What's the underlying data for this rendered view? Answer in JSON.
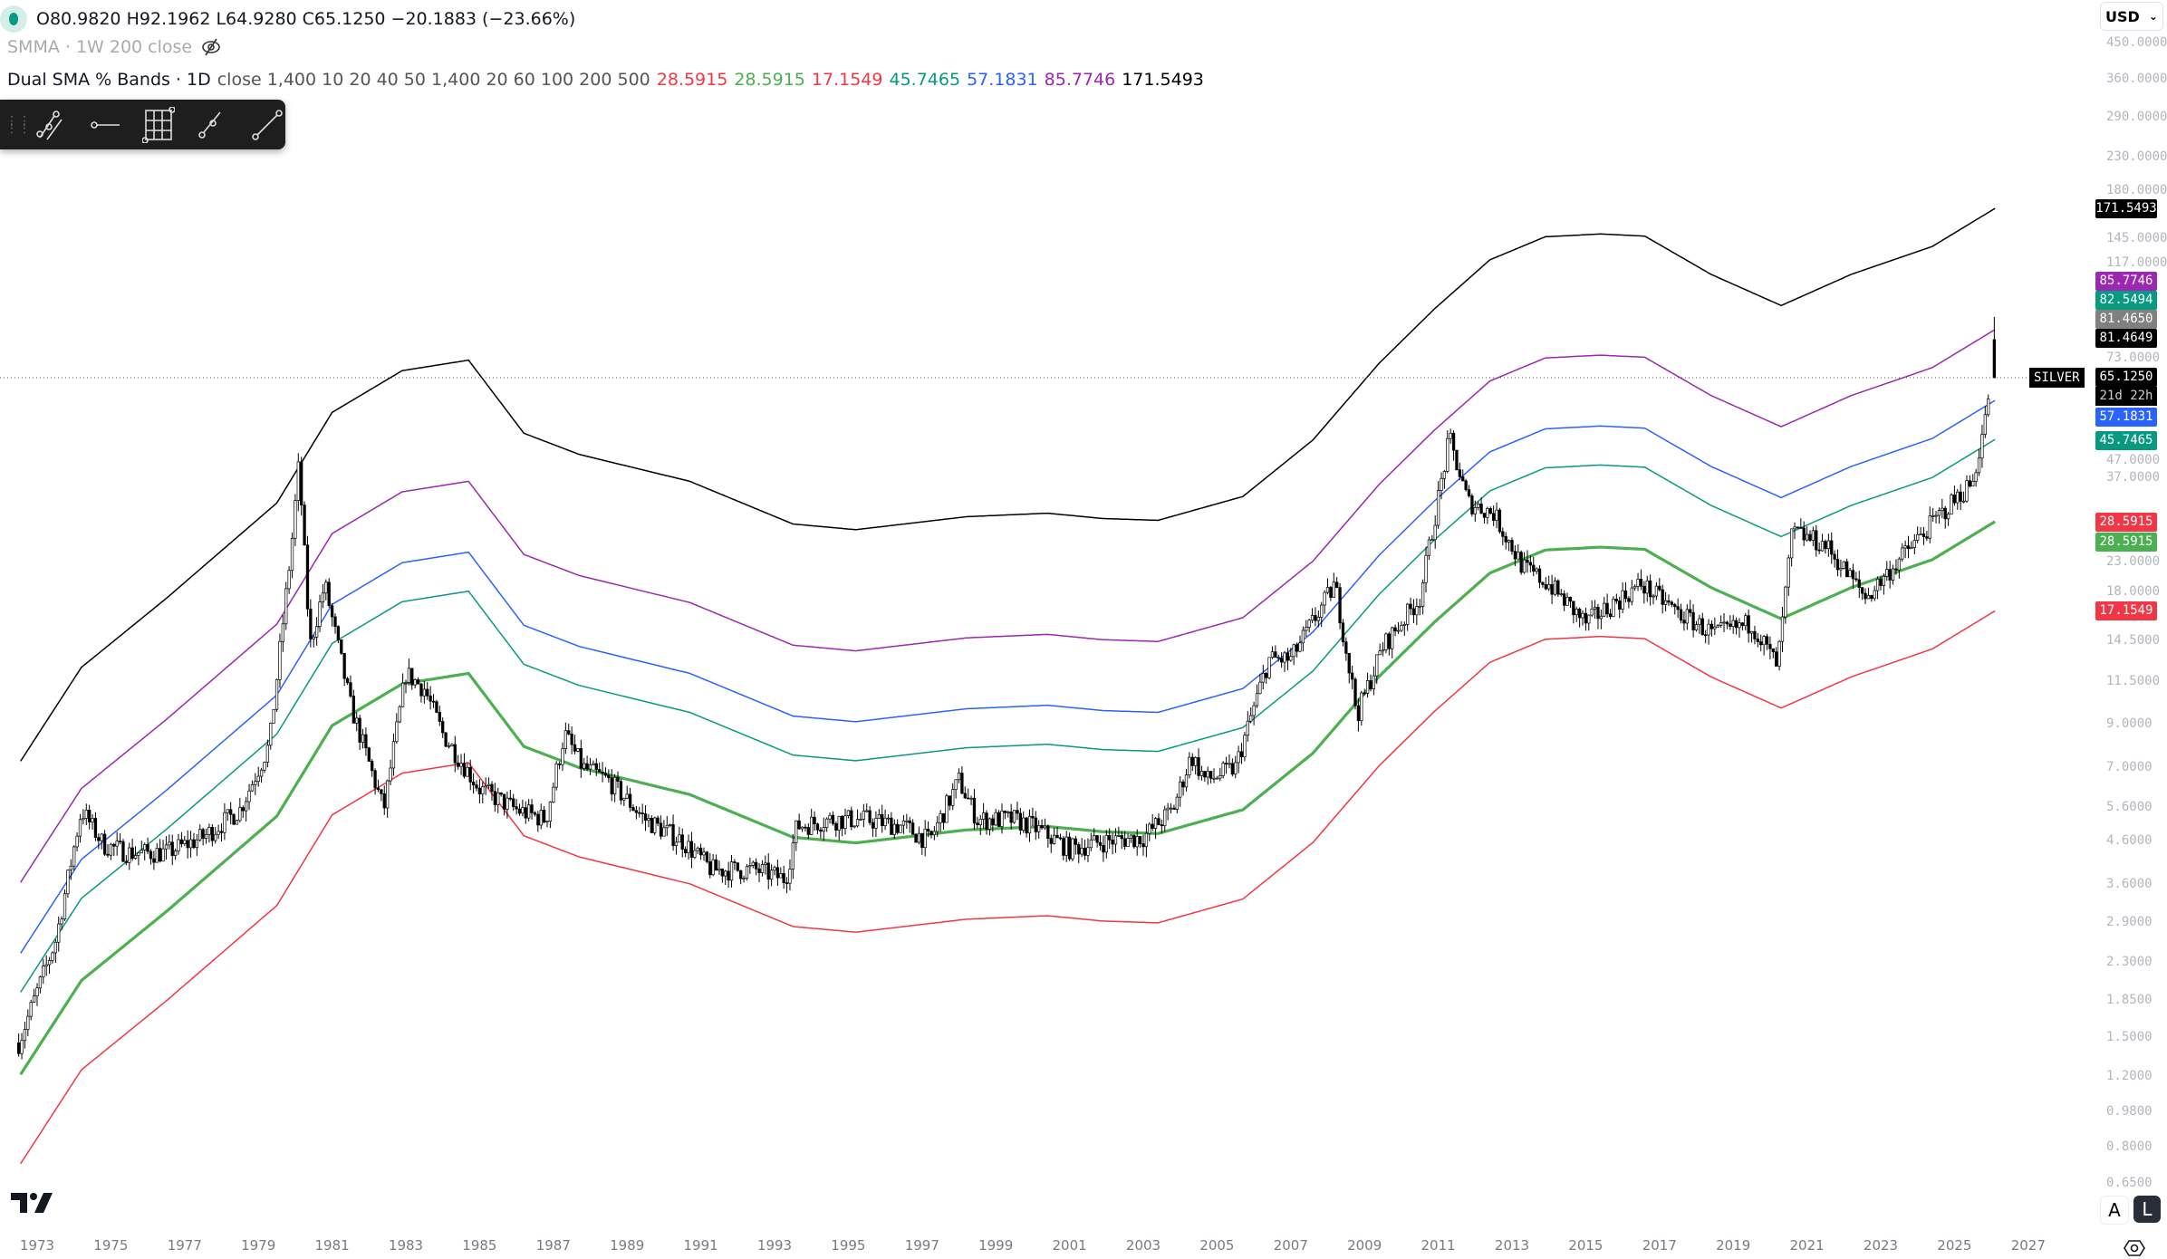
{
  "header": {
    "ohlc": "O80.9820 H92.1962 L64.9280 C65.1250 −20.1883 (−23.66%)",
    "indicator1": "SMMA · 1W 200 close",
    "indicator2_name": "Dual SMA % Bands · 1D",
    "indicator2_params": "close 1,400 10 20 40 50 1,400 20 60 100 200 500",
    "indicator2_values": [
      {
        "v": "28.5915",
        "color": "#f23645"
      },
      {
        "v": "28.5915",
        "color": "#4caf50"
      },
      {
        "v": "17.1549",
        "color": "#f23645"
      },
      {
        "v": "45.7465",
        "color": "#089981"
      },
      {
        "v": "57.1831",
        "color": "#2962ff"
      },
      {
        "v": "85.7746",
        "color": "#9c27b0"
      },
      {
        "v": "171.5493",
        "color": "#000000"
      }
    ]
  },
  "toolbar": {
    "icons": [
      "parallel-channel-icon",
      "horizontal-ray-icon",
      "fib-grid-icon",
      "trend-angle-icon",
      "trend-line-icon"
    ]
  },
  "currency": "USD",
  "symbol_label": "SILVER",
  "countdown": "21d 22h",
  "price_labels": [
    {
      "v": "171.5493",
      "color": "#000000"
    },
    {
      "v": "85.7746",
      "color": "#9c27b0"
    },
    {
      "v": "82.5494",
      "color": "#089981"
    },
    {
      "v": "81.4650",
      "color": "#808080"
    },
    {
      "v": "81.4649",
      "color": "#000000"
    },
    {
      "v": "65.1250",
      "color": "#000000"
    },
    {
      "v": "57.1831",
      "color": "#2962ff"
    },
    {
      "v": "45.7465",
      "color": "#089981"
    },
    {
      "v": "28.5915",
      "color": "#f23645"
    },
    {
      "v": "28.5915",
      "color": "#4caf50"
    },
    {
      "v": "17.1549",
      "color": "#f23645"
    }
  ],
  "scale_buttons": {
    "auto": "A",
    "log": "L"
  },
  "chart_data": {
    "type": "candlestick",
    "y_scale": "log",
    "ylim": [
      0.62,
      480
    ],
    "xlim": [
      1972.0,
      2027.3
    ],
    "y_ticks": [
      "450.0000",
      "360.0000",
      "290.0000",
      "230.0000",
      "180.0000",
      "145.0000",
      "117.0000",
      "73.0000",
      "47.0000",
      "37.0000",
      "23.0000",
      "18.0000",
      "14.5000",
      "11.5000",
      "9.0000",
      "7.0000",
      "5.6000",
      "4.6000",
      "3.6000",
      "2.9000",
      "2.3000",
      "1.8500",
      "1.5000",
      "1.2000",
      "0.9800",
      "0.8000",
      "0.6500"
    ],
    "x_ticks": [
      "1973",
      "1975",
      "1977",
      "1979",
      "1981",
      "1983",
      "1985",
      "1987",
      "1989",
      "1991",
      "1993",
      "1995",
      "1997",
      "1999",
      "2001",
      "2003",
      "2005",
      "2007",
      "2009",
      "2011",
      "2013",
      "2015",
      "2017",
      "2019",
      "2021",
      "2023",
      "2025",
      "2027"
    ],
    "price_path": [
      [
        1972.5,
        1.45
      ],
      [
        1973.5,
        2.6
      ],
      [
        1974.2,
        5.5
      ],
      [
        1974.8,
        4.5
      ],
      [
        1975.5,
        4.3
      ],
      [
        1976.5,
        4.3
      ],
      [
        1977.5,
        4.7
      ],
      [
        1978.5,
        5.5
      ],
      [
        1979.3,
        8
      ],
      [
        1979.9,
        25
      ],
      [
        1980.1,
        40
      ],
      [
        1980.4,
        14
      ],
      [
        1980.8,
        20
      ],
      [
        1981.5,
        10
      ],
      [
        1982.4,
        5.5
      ],
      [
        1983.0,
        12
      ],
      [
        1983.5,
        11
      ],
      [
        1984,
        8.5
      ],
      [
        1985,
        6.2
      ],
      [
        1986,
        5.5
      ],
      [
        1986.8,
        5.2
      ],
      [
        1987.3,
        8.5
      ],
      [
        1987.8,
        7
      ],
      [
        1988.5,
        6.5
      ],
      [
        1989.5,
        5.2
      ],
      [
        1990.5,
        4.6
      ],
      [
        1991.3,
        3.9
      ],
      [
        1992.5,
        3.9
      ],
      [
        1993.3,
        3.7
      ],
      [
        1993.6,
        5
      ],
      [
        1994.5,
        5.2
      ],
      [
        1995.5,
        5.2
      ],
      [
        1996.5,
        5
      ],
      [
        1997.2,
        4.6
      ],
      [
        1998,
        6.5
      ],
      [
        1998.5,
        5.2
      ],
      [
        1999.5,
        5.2
      ],
      [
        2000,
        5
      ],
      [
        2001,
        4.4
      ],
      [
        2002,
        4.6
      ],
      [
        2003,
        4.7
      ],
      [
        2003.8,
        5.5
      ],
      [
        2004.3,
        7.5
      ],
      [
        2004.7,
        6.5
      ],
      [
        2005.5,
        7
      ],
      [
        2006.4,
        13
      ],
      [
        2007,
        13
      ],
      [
        2008.2,
        20
      ],
      [
        2008.8,
        9.5
      ],
      [
        2009.5,
        14
      ],
      [
        2010.5,
        18.5
      ],
      [
        2011.3,
        46
      ],
      [
        2011.8,
        32
      ],
      [
        2012.5,
        30
      ],
      [
        2013.3,
        22
      ],
      [
        2014,
        20
      ],
      [
        2015,
        16
      ],
      [
        2016.5,
        20
      ],
      [
        2017.5,
        17
      ],
      [
        2018.5,
        15
      ],
      [
        2019.5,
        16
      ],
      [
        2020.2,
        12.5
      ],
      [
        2020.6,
        27
      ],
      [
        2021.5,
        25
      ],
      [
        2022.6,
        18.5
      ],
      [
        2023.5,
        23
      ],
      [
        2024.5,
        29
      ],
      [
        2025.5,
        36
      ],
      [
        2025.9,
        55
      ],
      [
        2026.0,
        81
      ]
    ],
    "last_candle": {
      "open": 80.982,
      "high": 92.1962,
      "low": 64.928,
      "close": 65.125
    },
    "current_price": 65.125,
    "base_sma": [
      [
        1972.55,
        1.21
      ],
      [
        1974.2,
        2.07
      ],
      [
        1976.5,
        3.07
      ],
      [
        1979.5,
        5.3
      ],
      [
        1981,
        8.9
      ],
      [
        1982.9,
        11.3
      ],
      [
        1984.7,
        12
      ],
      [
        1986.2,
        7.9
      ],
      [
        1987.7,
        7.0
      ],
      [
        1990.7,
        6.0
      ],
      [
        1993.5,
        4.7
      ],
      [
        1995.2,
        4.55
      ],
      [
        1998.2,
        4.9
      ],
      [
        2000.4,
        5.0
      ],
      [
        2001.9,
        4.85
      ],
      [
        2003.4,
        4.8
      ],
      [
        2005.7,
        5.5
      ],
      [
        2007.6,
        7.6
      ],
      [
        2009.4,
        11.8
      ],
      [
        2010.9,
        16.1
      ],
      [
        2012.4,
        21.3
      ],
      [
        2013.9,
        24.3
      ],
      [
        2015.4,
        24.7
      ],
      [
        2016.6,
        24.4
      ],
      [
        2018.4,
        19.6
      ],
      [
        2020.3,
        16.4
      ],
      [
        2022.2,
        19.6
      ],
      [
        2024.4,
        23
      ],
      [
        2026.1,
        28.5915
      ]
    ],
    "bands": [
      {
        "mult": 0.6,
        "color": "#f23645",
        "value": 17.1549
      },
      {
        "mult": 1.0,
        "color": "#4caf50",
        "value": 28.5915
      },
      {
        "mult": 1.6,
        "color": "#089981",
        "value": 45.7465
      },
      {
        "mult": 2.0,
        "color": "#2962ff",
        "value": 57.1831
      },
      {
        "mult": 3.0,
        "color": "#9c27b0",
        "value": 85.7746
      },
      {
        "mult": 6.0,
        "color": "#000000",
        "value": 171.5493
      }
    ]
  }
}
